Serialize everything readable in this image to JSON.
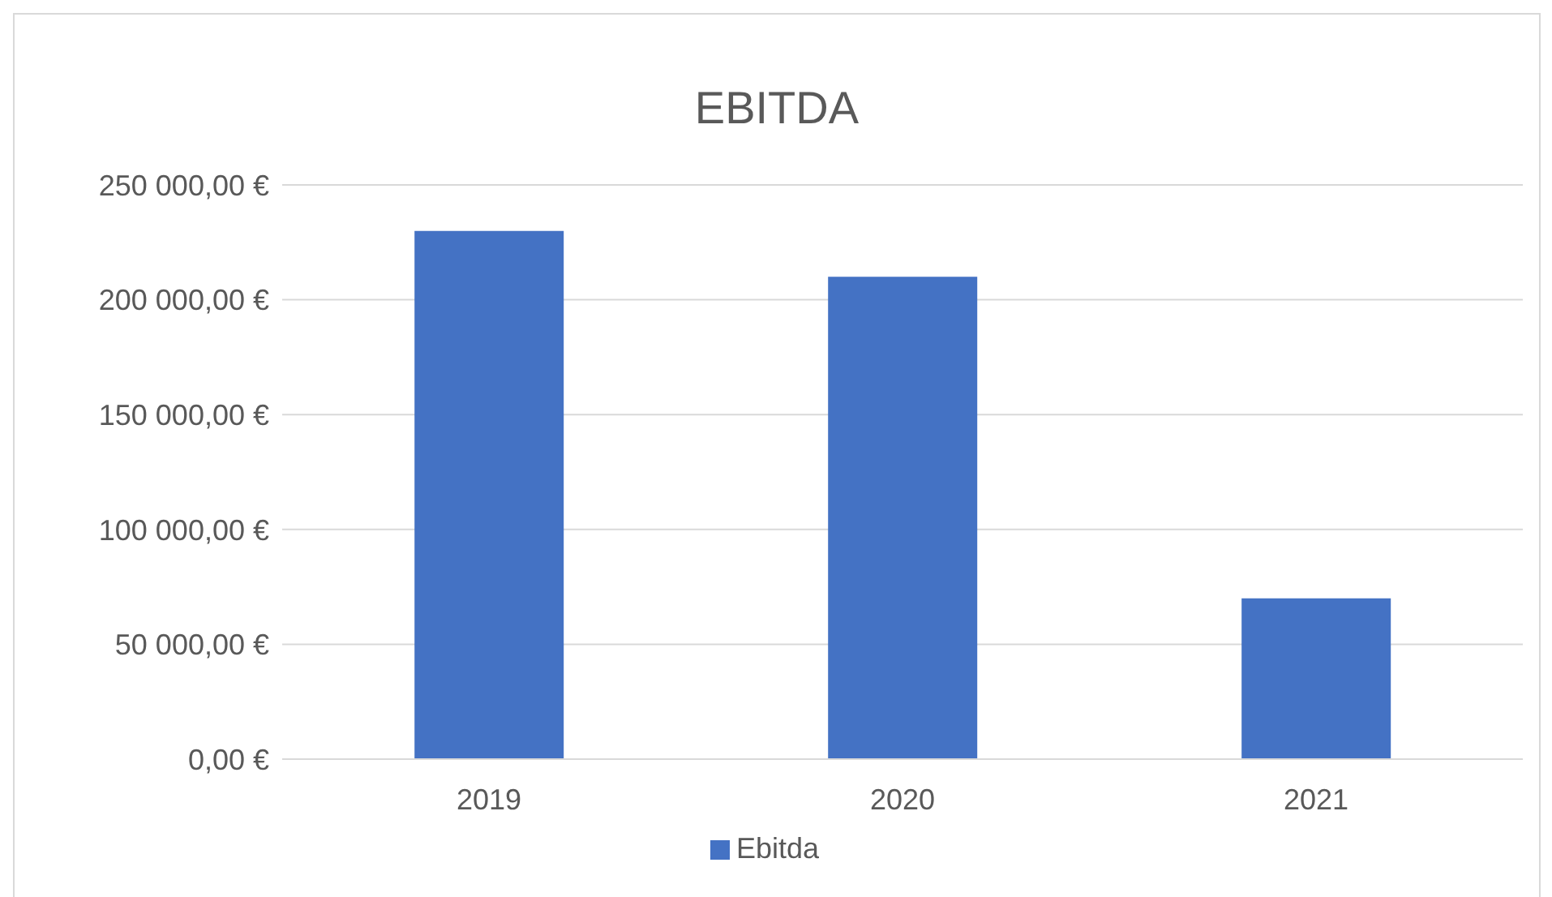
{
  "chart_data": {
    "type": "bar",
    "title": "EBITDA",
    "categories": [
      "2019",
      "2020",
      "2021"
    ],
    "series": [
      {
        "name": "Ebitda",
        "color": "#4472c4",
        "values": [
          230000,
          210000,
          70000
        ]
      }
    ],
    "ylim": [
      0,
      250000
    ],
    "yticks": [
      {
        "value": 0,
        "label": "0,00 €"
      },
      {
        "value": 50000,
        "label": "50 000,00 €"
      },
      {
        "value": 100000,
        "label": "100 000,00 €"
      },
      {
        "value": 150000,
        "label": "150 000,00 €"
      },
      {
        "value": 200000,
        "label": "200 000,00 €"
      },
      {
        "value": 250000,
        "label": "250 000,00 €"
      }
    ],
    "grid": "y",
    "legend": "bottom"
  }
}
